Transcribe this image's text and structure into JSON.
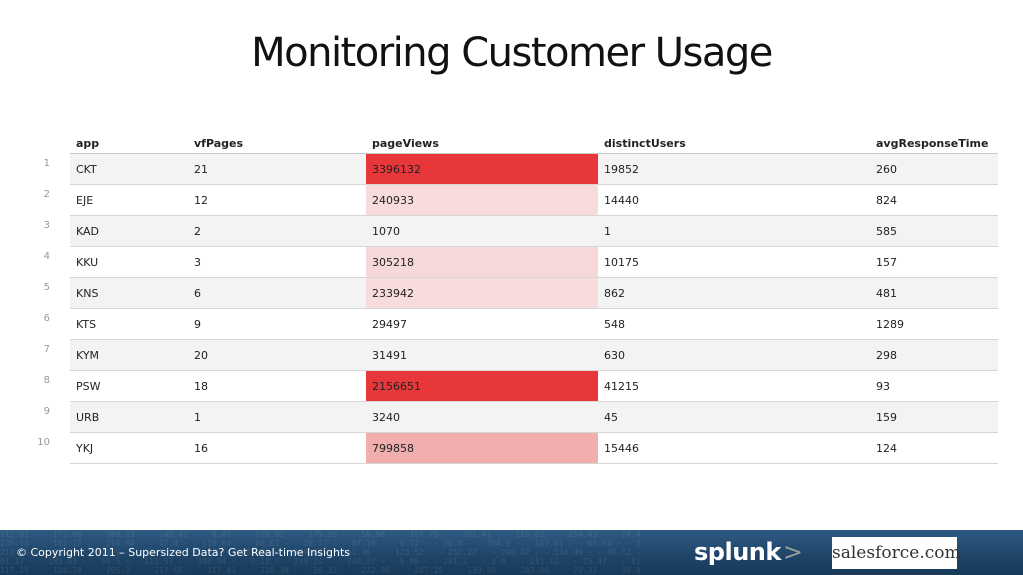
{
  "title": "Monitoring Customer Usage",
  "table": {
    "columns": [
      "app",
      "vfPages",
      "pageViews",
      "distinctUsers",
      "avgResponseTime"
    ],
    "rows": [
      {
        "idx": "1",
        "app": "CKT",
        "vfPages": "21",
        "pageViews": "3396132",
        "distinctUsers": "19852",
        "avgResponseTime": "260",
        "heat": "#e8373b"
      },
      {
        "idx": "2",
        "app": "EJE",
        "vfPages": "12",
        "pageViews": "240933",
        "distinctUsers": "14440",
        "avgResponseTime": "824",
        "heat": "#f8dcdc"
      },
      {
        "idx": "3",
        "app": "KAD",
        "vfPages": "2",
        "pageViews": "1070",
        "distinctUsers": "1",
        "avgResponseTime": "585",
        "heat": ""
      },
      {
        "idx": "4",
        "app": "KKU",
        "vfPages": "3",
        "pageViews": "305218",
        "distinctUsers": "10175",
        "avgResponseTime": "157",
        "heat": "#f7d8d8"
      },
      {
        "idx": "5",
        "app": "KNS",
        "vfPages": "6",
        "pageViews": "233942",
        "distinctUsers": "862",
        "avgResponseTime": "481",
        "heat": "#f8dcdc"
      },
      {
        "idx": "6",
        "app": "KTS",
        "vfPages": "9",
        "pageViews": "29497",
        "distinctUsers": "548",
        "avgResponseTime": "1289",
        "heat": ""
      },
      {
        "idx": "7",
        "app": "KYM",
        "vfPages": "20",
        "pageViews": "31491",
        "distinctUsers": "630",
        "avgResponseTime": "298",
        "heat": ""
      },
      {
        "idx": "8",
        "app": "PSW",
        "vfPages": "18",
        "pageViews": "2156651",
        "distinctUsers": "41215",
        "avgResponseTime": "93",
        "heat": "#e8373b"
      },
      {
        "idx": "9",
        "app": "URB",
        "vfPages": "1",
        "pageViews": "3240",
        "distinctUsers": "45",
        "avgResponseTime": "159",
        "heat": ""
      },
      {
        "idx": "10",
        "app": "YKJ",
        "vfPages": "16",
        "pageViews": "799858",
        "distinctUsers": "15446",
        "avgResponseTime": "124",
        "heat": "#f0aeae"
      }
    ]
  },
  "footer": {
    "copyright": "© Copyright 2011 – Supersized Data? Get Real-time Insights",
    "splunk_logo": "splunk",
    "splunk_chevron": ">",
    "salesforce_logo": "salesforce.com"
  },
  "colors": {
    "heat_high": "#e8373b",
    "heat_mid": "#f0aeae",
    "heat_low": "#f8dcdc",
    "footer_bg": "#1e4468"
  }
}
